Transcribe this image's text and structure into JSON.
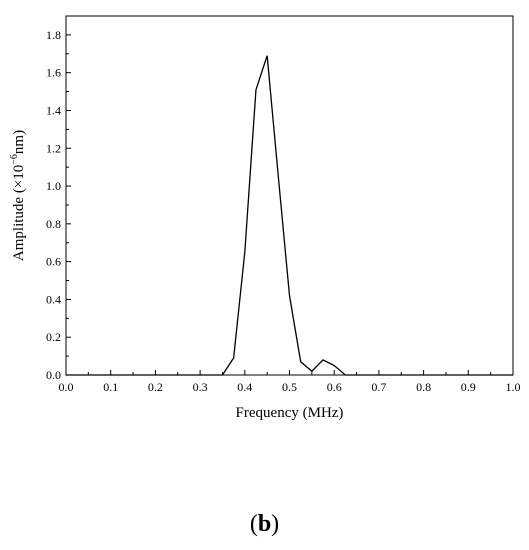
{
  "chart_data": {
    "type": "line",
    "xlabel": "Frequency (MHz)",
    "ylabel_parts": {
      "prefix": "Amplitude (×10",
      "superscript": "−6",
      "suffix": "nm)"
    },
    "xlim": [
      0.0,
      1.0
    ],
    "ylim": [
      0.0,
      1.9
    ],
    "x_ticks": [
      0.0,
      0.1,
      0.2,
      0.3,
      0.4,
      0.5,
      0.6,
      0.7,
      0.8,
      0.9,
      1.0
    ],
    "x_tick_labels": [
      "0.0",
      "0.1",
      "0.2",
      "0.3",
      "0.4",
      "0.5",
      "0.6",
      "0.7",
      "0.8",
      "0.9",
      "1.0"
    ],
    "y_ticks": [
      0.0,
      0.2,
      0.4,
      0.6,
      0.8,
      1.0,
      1.2,
      1.4,
      1.6,
      1.8
    ],
    "y_tick_labels": [
      "0.0",
      "0.2",
      "0.4",
      "0.6",
      "0.8",
      "1.0",
      "1.2",
      "1.4",
      "1.6",
      "1.8"
    ],
    "grid": false,
    "series": [
      {
        "x": [
          0.0,
          0.025,
          0.05,
          0.075,
          0.1,
          0.125,
          0.15,
          0.175,
          0.2,
          0.225,
          0.25,
          0.275,
          0.3,
          0.325,
          0.35,
          0.375,
          0.4,
          0.425,
          0.45,
          0.475,
          0.5,
          0.525,
          0.55,
          0.575,
          0.6,
          0.625,
          0.65,
          0.675,
          0.7,
          0.725,
          0.75,
          0.775,
          0.8,
          0.825,
          0.85,
          0.875,
          0.9,
          0.925,
          0.95,
          0.975,
          1.0
        ],
        "y": [
          0,
          0,
          0,
          0,
          0,
          0,
          0,
          0,
          0,
          0,
          0,
          0,
          0,
          0,
          0.0,
          0.09,
          0.65,
          1.51,
          1.69,
          1.05,
          0.42,
          0.07,
          0.02,
          0.08,
          0.05,
          0.0,
          0,
          0,
          0,
          0,
          0,
          0,
          0,
          0,
          0,
          0,
          0,
          0,
          0,
          0,
          0
        ],
        "color": "#000000"
      }
    ]
  },
  "panel_label": "b"
}
